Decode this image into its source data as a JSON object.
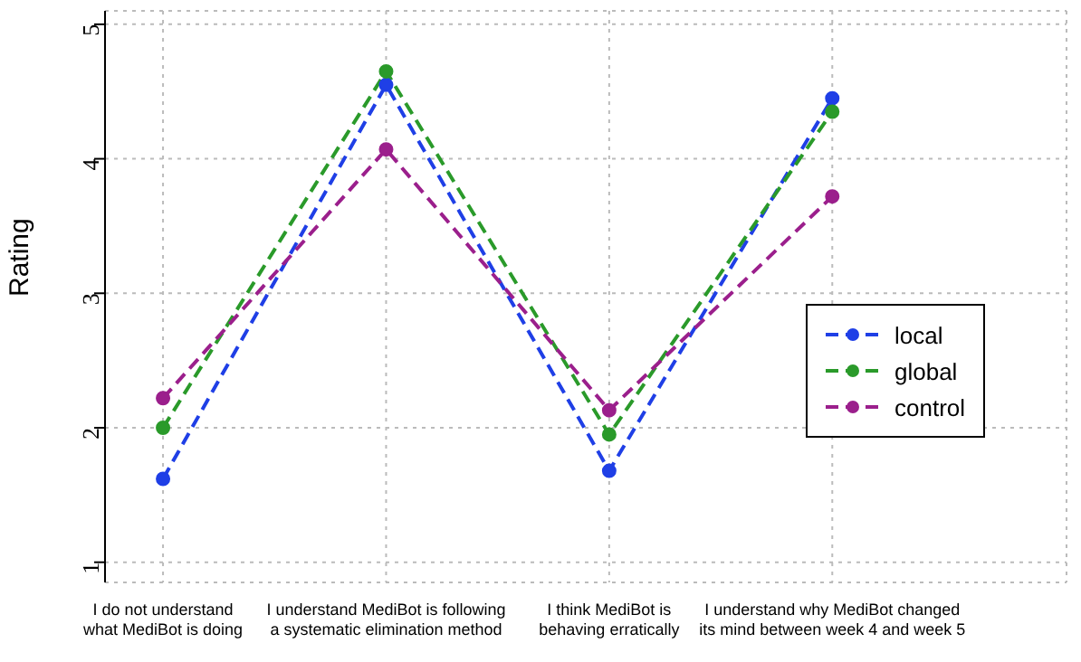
{
  "chart_data": {
    "type": "line",
    "ylabel": "Rating",
    "categories": [
      "I do not understand what MediBot is doing",
      "I understand MediBot is following a systematic elimination method",
      "I think MediBot is behaving erratically",
      "I understand why MediBot changed its mind between week 4 and week 5"
    ],
    "series": [
      {
        "name": "local",
        "color": "#1f3fe6",
        "values": [
          1.62,
          4.55,
          1.68,
          4.45
        ]
      },
      {
        "name": "global",
        "color": "#2a9a2a",
        "values": [
          2.0,
          4.65,
          1.95,
          4.35
        ]
      },
      {
        "name": "control",
        "color": "#9b1f8c",
        "values": [
          2.22,
          4.07,
          2.13,
          3.72
        ]
      }
    ],
    "ylim": [
      0.85,
      5.1
    ],
    "yticks": [
      1,
      2,
      3,
      4,
      5
    ],
    "grid": true,
    "legend": "right",
    "marker": "circle",
    "line_style": "dashed"
  }
}
